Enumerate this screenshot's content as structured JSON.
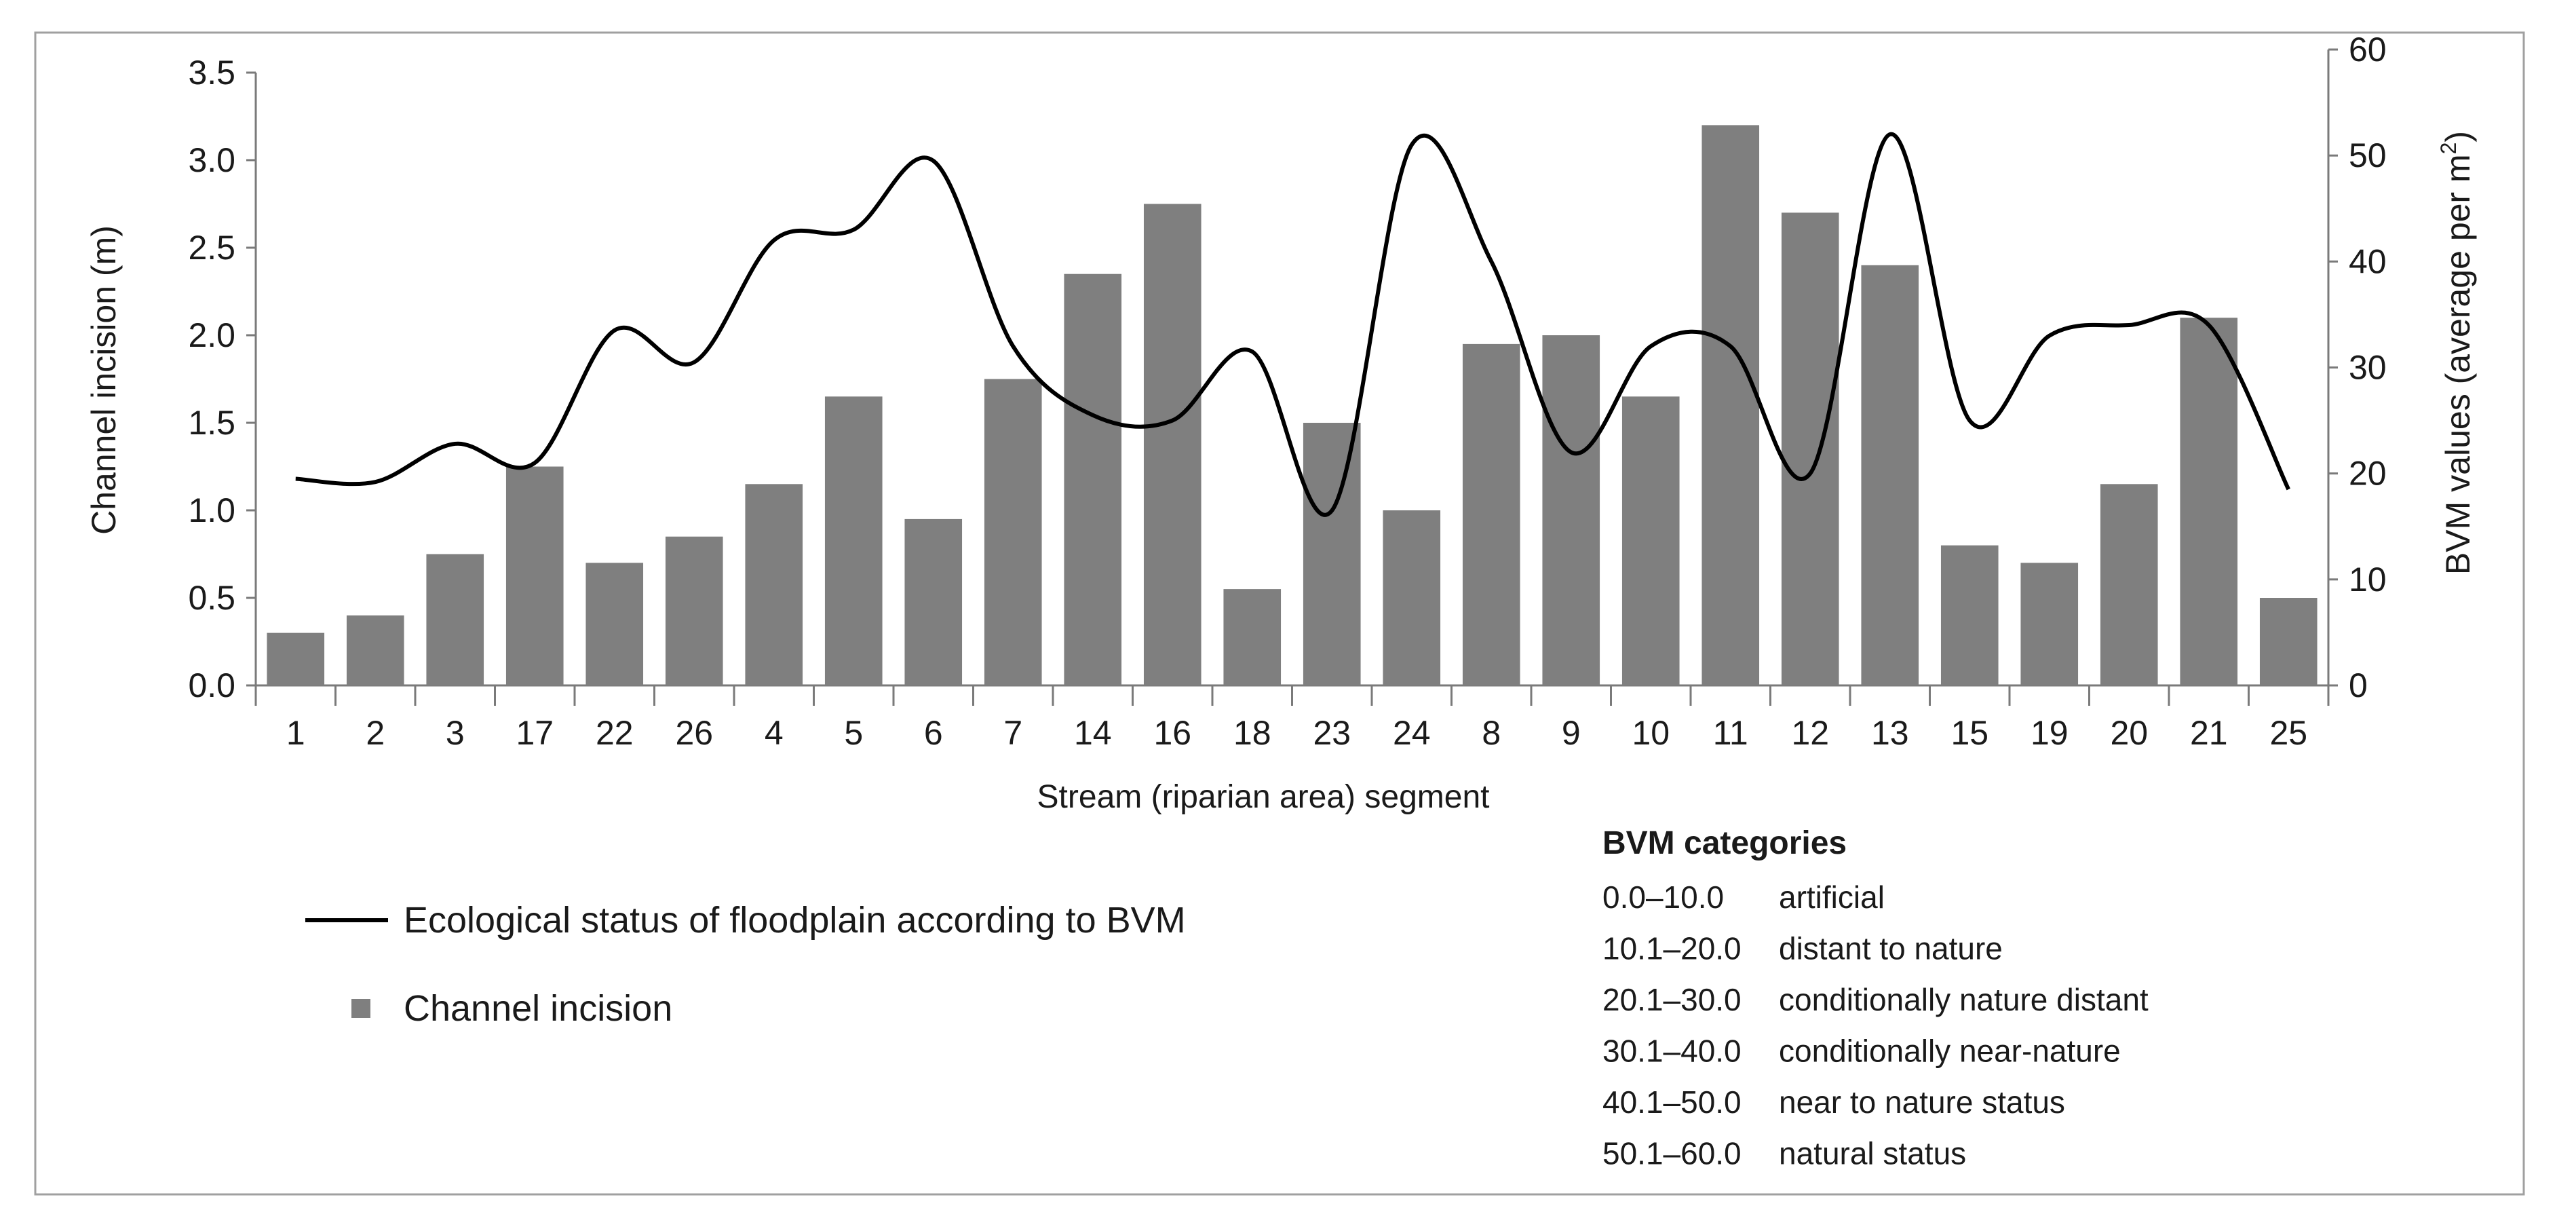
{
  "chart_data": {
    "type": "bar+line",
    "xlabel": "Stream (riparian area) segment",
    "ylabel_left": "Channel incision (m)",
    "ylabel_right": "BVM values (average per m",
    "ylabel_right_sup": "2",
    "ylabel_right_end": ")",
    "ylim_left": [
      0,
      3.5
    ],
    "yticks_left": [
      "0.0",
      "0.5",
      "1.0",
      "1.5",
      "2.0",
      "2.5",
      "3.0",
      "3.5"
    ],
    "ylim_right": [
      0,
      60
    ],
    "yticks_right": [
      "0",
      "10",
      "20",
      "30",
      "40",
      "50",
      "60"
    ],
    "grid": false,
    "categories": [
      "1",
      "2",
      "3",
      "17",
      "22",
      "26",
      "4",
      "5",
      "6",
      "7",
      "14",
      "16",
      "18",
      "23",
      "24",
      "8",
      "9",
      "10",
      "11",
      "12",
      "13",
      "15",
      "19",
      "20",
      "21",
      "25"
    ],
    "series": [
      {
        "name": "Channel incision",
        "type": "bar",
        "axis": "left",
        "color": "#7f7f7f",
        "values": [
          0.3,
          0.4,
          0.75,
          1.25,
          0.7,
          0.85,
          1.15,
          1.65,
          0.95,
          1.75,
          2.35,
          2.75,
          0.55,
          1.5,
          1.0,
          1.95,
          2.0,
          1.65,
          3.2,
          2.7,
          2.4,
          0.8,
          0.7,
          1.15,
          2.1,
          0.5
        ]
      },
      {
        "name": "Ecological status of floodplain according to BVM",
        "type": "line",
        "axis": "right",
        "color": "#000000",
        "values": [
          19.5,
          19.2,
          22.8,
          21,
          33.5,
          30.5,
          42,
          43,
          49.5,
          32,
          25.5,
          25,
          31.5,
          16.5,
          51,
          40,
          22,
          32,
          32,
          20,
          52,
          25,
          33,
          34,
          34,
          18.5
        ]
      }
    ],
    "legend": {
      "placement": "bottom-left",
      "items": [
        {
          "label": "Ecological status of floodplain according to BVM",
          "marker": "line"
        },
        {
          "label": "Channel incision",
          "marker": "square"
        }
      ]
    },
    "bvm_categories": {
      "title": "BVM categories",
      "rows": [
        {
          "range": "0.0–10.0",
          "label": "artificial"
        },
        {
          "range": "10.1–20.0",
          "label": "distant to nature"
        },
        {
          "range": "20.1–30.0",
          "label": "conditionally nature distant"
        },
        {
          "range": "30.1–40.0",
          "label": "conditionally near-nature"
        },
        {
          "range": "40.1–50.0",
          "label": "near to nature status"
        },
        {
          "range": "50.1–60.0",
          "label": "natural status"
        }
      ]
    }
  }
}
